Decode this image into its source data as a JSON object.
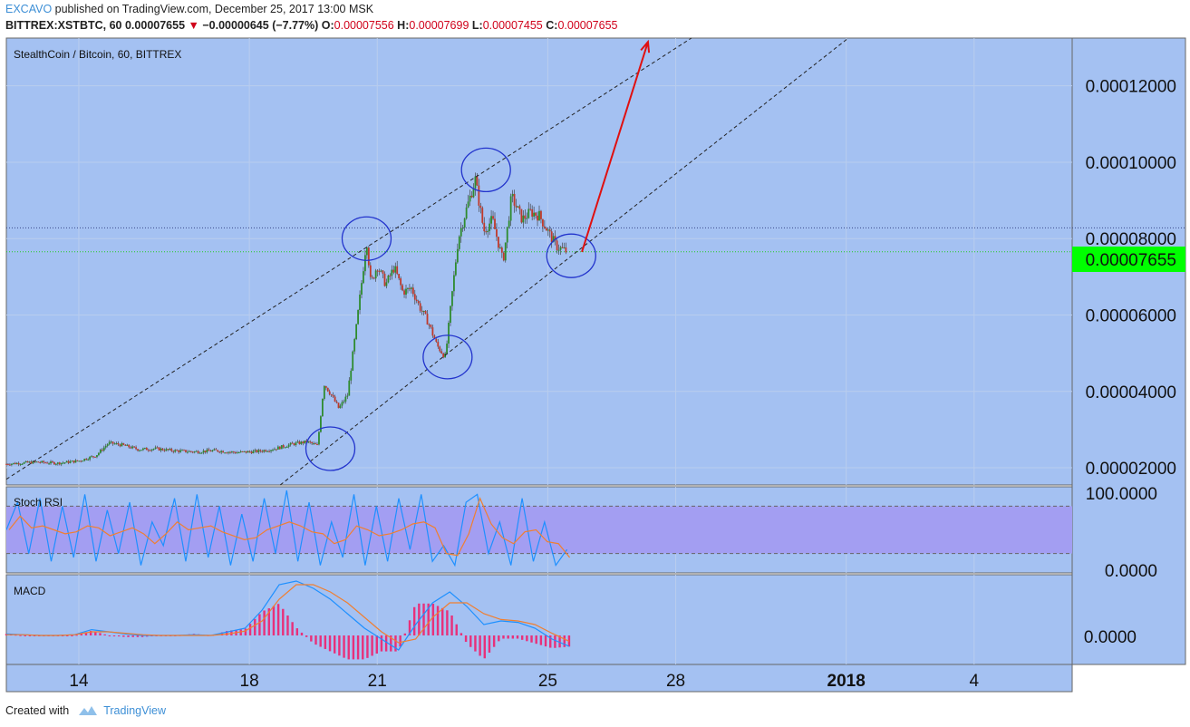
{
  "header": {
    "author": "EXCAVO",
    "published_text": "published on TradingView.com, December 25, 2017 13:00 MSK",
    "symbol_line": "BITTREX:XSTBTC, 60",
    "last": "0.00007655",
    "change": "−0.00000645 (−7.77%)",
    "open_label": "O:",
    "open": "0.00007556",
    "high_label": "H:",
    "high": "0.00007699",
    "low_label": "L:",
    "low": "0.00007455",
    "close_label": "C:",
    "close": "0.00007655"
  },
  "footer": {
    "created_with": "Created with",
    "brand": "TradingView"
  },
  "colors": {
    "pane_bg": "#a4c1f2",
    "rsi_band": "#a39ef2",
    "bull": "#2e8b2e",
    "bear": "#c0392b",
    "circle": "#2233cc",
    "arrow": "#e01010",
    "price_tag": "#00ff00",
    "macd_line": "#1e90ff",
    "signal_line": "#f07f30",
    "histogram": "#e8307a"
  },
  "chart_data": [
    {
      "type": "candlestick",
      "title": "StealthCoin / Bitcoin, 60, BITTREX",
      "x_ticks": [
        "14",
        "18",
        "21",
        "25",
        "28",
        "2018",
        "4"
      ],
      "x_tick_days": [
        14,
        18,
        21,
        25,
        28,
        32,
        35
      ],
      "x_range_days": [
        12.3,
        37.3
      ],
      "y_ticks": [
        "0.00002000",
        "0.00004000",
        "0.00006000",
        "0.00008000",
        "0.00010000",
        "0.00012000"
      ],
      "y_tick_values": [
        2e-05,
        4e-05,
        6e-05,
        8e-05,
        0.0001,
        0.00012
      ],
      "y_range": [
        1.55e-05,
        0.0001325
      ],
      "last_price_label": "0.00007655",
      "last_price": 7.655e-05,
      "ref_line": 8.28e-05,
      "grid": true,
      "path_days": [
        12.3,
        13.0,
        13.5,
        14.0,
        14.4,
        14.7,
        15.0,
        15.4,
        15.8,
        16.2,
        16.7,
        17.2,
        17.7,
        18.2,
        18.6,
        19.0,
        19.35,
        19.6,
        19.75,
        19.9,
        20.1,
        20.3,
        20.5,
        20.65,
        20.75,
        20.85,
        21.0,
        21.2,
        21.4,
        21.6,
        21.8,
        22.0,
        22.2,
        22.4,
        22.6,
        22.75,
        22.9,
        23.1,
        23.3,
        23.5,
        23.7,
        23.95,
        24.15,
        24.4,
        24.6,
        24.8,
        25.0,
        25.2,
        25.45
      ],
      "path_prices": [
        2.1e-05,
        2.15e-05,
        2.12e-05,
        2.18e-05,
        2.32e-05,
        2.65e-05,
        2.6e-05,
        2.48e-05,
        2.5e-05,
        2.45e-05,
        2.42e-05,
        2.45e-05,
        2.4e-05,
        2.43e-05,
        2.5e-05,
        2.62e-05,
        2.68e-05,
        2.58e-05,
        4.2e-05,
        3.95e-05,
        3.55e-05,
        3.9e-05,
        5.6e-05,
        7e-05,
        8e-05,
        6.8e-05,
        7.3e-05,
        6.8e-05,
        7.25e-05,
        6.6e-05,
        6.7e-05,
        6.2e-05,
        5.8e-05,
        5.2e-05,
        4.9e-05,
        6.5e-05,
        8e-05,
        8.8e-05,
        9.55e-05,
        8.2e-05,
        8.5e-05,
        7.4e-05,
        9.1e-05,
        8.5e-05,
        8.7e-05,
        8.6e-05,
        8.2e-05,
        7.8e-05,
        7.655e-05
      ],
      "channel_upper": {
        "days": [
          12.3,
          23.5
        ],
        "prices": [
          1.7e-05,
          9.75e-05
        ]
      },
      "channel_lower": {
        "days": [
          19.75,
          25.45
        ],
        "prices": [
          2.45e-05,
          7.455e-05
        ]
      },
      "marked_circles": [
        {
          "day": 19.9,
          "price": 2.5e-05
        },
        {
          "day": 20.75,
          "price": 8e-05
        },
        {
          "day": 22.65,
          "price": 4.9e-05
        },
        {
          "day": 23.55,
          "price": 9.8e-05
        },
        {
          "day": 25.55,
          "price": 7.55e-05
        }
      ],
      "projection_arrow": {
        "days": [
          25.8,
          27.35
        ],
        "prices": [
          7.65e-05,
          0.0001315
        ]
      }
    },
    {
      "type": "line",
      "title": "Stoch RSI",
      "y_ticks": [
        "100.0000",
        "0.0000"
      ],
      "y_range": [
        0,
        100
      ],
      "band": [
        20,
        80
      ],
      "series": [
        {
          "values": [
            50,
            85,
            20,
            90,
            10,
            80,
            15,
            95,
            10,
            75,
            20,
            85,
            5,
            60,
            30,
            90,
            10,
            95,
            15,
            80,
            5,
            70,
            10,
            90,
            20,
            100,
            10,
            85,
            5,
            60,
            15,
            95,
            5,
            80,
            10,
            90,
            25,
            95,
            10,
            30,
            5,
            85,
            95,
            20,
            60,
            5,
            90,
            10,
            60,
            5,
            25
          ]
        }
      ]
    },
    {
      "type": "line",
      "title": "MACD",
      "y_ticks": [
        "0.0000"
      ],
      "series": [
        {
          "values": [
            0.2,
            0.1,
            0,
            0,
            0.1,
            0.8,
            0.5,
            0.2,
            0,
            0,
            0,
            0.1,
            0,
            0.5,
            1.0,
            3.5,
            7.0,
            7.5,
            6.5,
            5.0,
            3.0,
            1.0,
            -0.5,
            -2.0,
            1.5,
            4.5,
            6.0,
            4.0,
            1.5,
            2.0,
            1.8,
            1.0,
            -0.5,
            -1.5
          ]
        },
        {
          "values": [
            0.1,
            0.1,
            0,
            0,
            0.1,
            0.5,
            0.5,
            0.3,
            0.1,
            0,
            0,
            0,
            0,
            0.2,
            0.6,
            2.0,
            5.0,
            7.0,
            7.0,
            6.0,
            4.5,
            2.5,
            0.5,
            -1.0,
            -0.5,
            2.5,
            4.5,
            4.5,
            3.0,
            2.2,
            2.0,
            1.5,
            0.3,
            -0.8
          ]
        }
      ]
    }
  ]
}
